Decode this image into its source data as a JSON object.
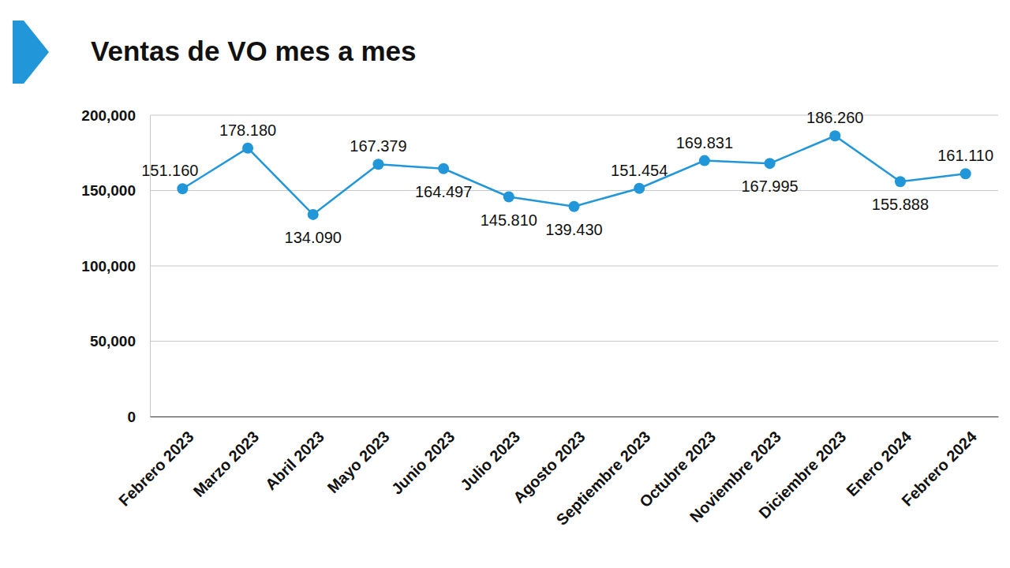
{
  "chart_data": {
    "type": "line",
    "title": "Ventas de VO mes a mes",
    "categories": [
      "Febrero 2023",
      "Marzo 2023",
      "Abril 2023",
      "Mayo 2023",
      "Junio 2023",
      "Julio 2023",
      "Agosto 2023",
      "Septiembre 2023",
      "Octubre 2023",
      "Noviembre 2023",
      "Diciembre 2023",
      "Enero 2024",
      "Febrero 2024"
    ],
    "values": [
      151160,
      178180,
      134090,
      167379,
      164497,
      145810,
      139430,
      151454,
      169831,
      167995,
      186260,
      155888,
      161110
    ],
    "value_labels": [
      "151.160",
      "178.180",
      "134.090",
      "167.379",
      "164.497",
      "145.810",
      "139.430",
      "151.454",
      "169.831",
      "167.995",
      "186.260",
      "155.888",
      "161.110"
    ],
    "color": "#2196d8",
    "marker": "circle",
    "ylim": [
      0,
      200000
    ],
    "yticks": [
      0,
      {
        "value": 50000,
        "label": "50,000"
      },
      {
        "value": 100000,
        "label": "100,000"
      },
      {
        "value": 150000,
        "label": "150,000"
      },
      {
        "value": 200000,
        "label": "200,000"
      }
    ],
    "grid": true,
    "data_labels": true
  }
}
